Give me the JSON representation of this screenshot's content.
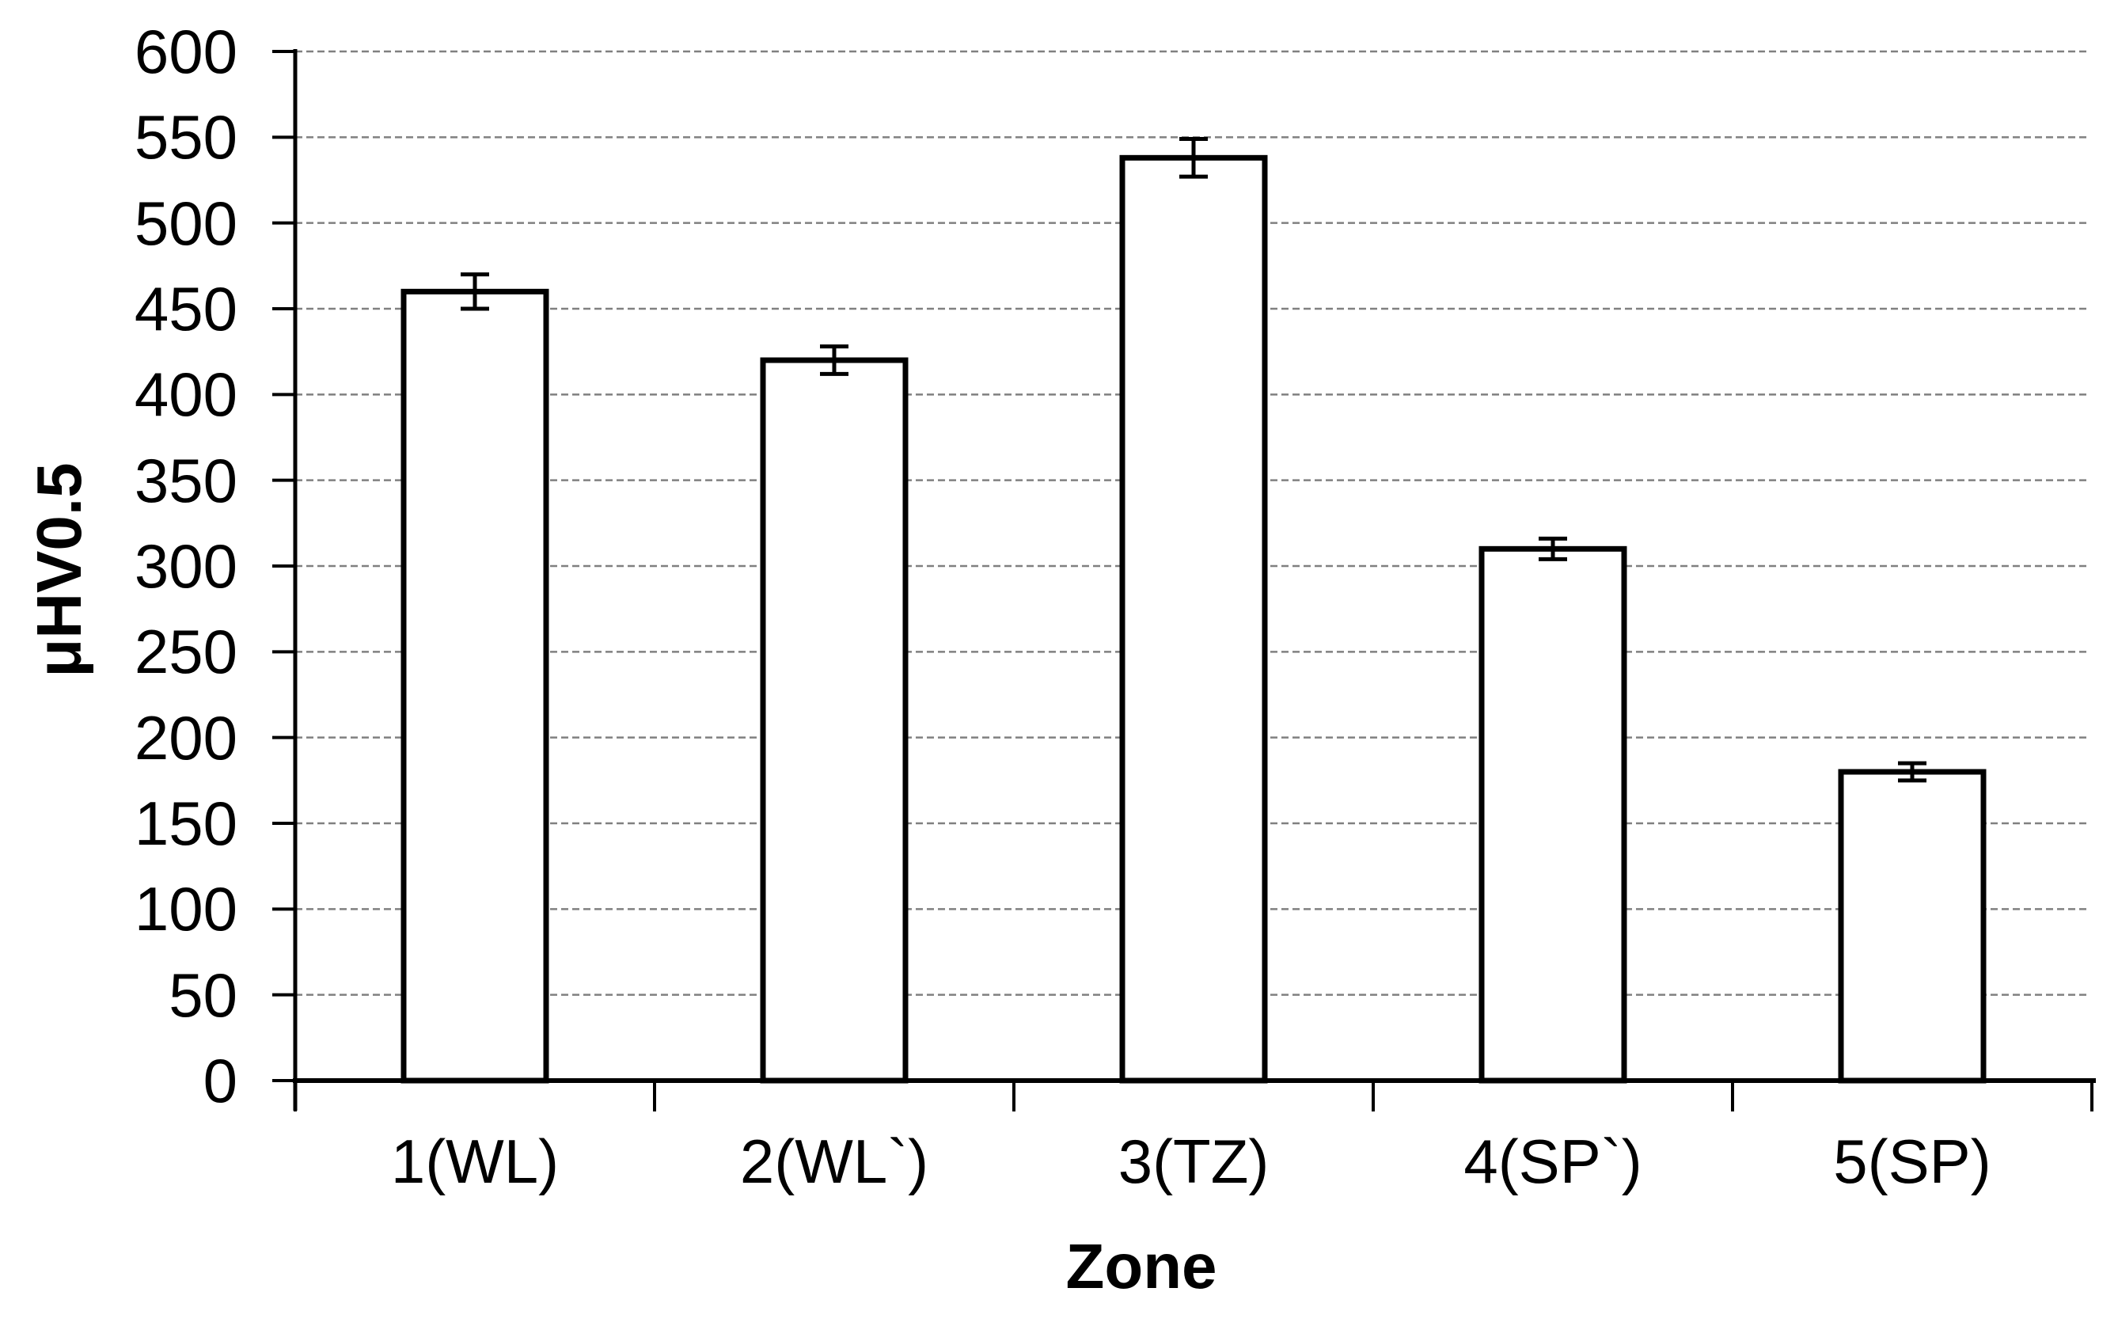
{
  "figure": {
    "background": "#ffffff"
  },
  "chart_data": {
    "type": "bar",
    "title": "",
    "xlabel": "Zone",
    "ylabel": "μHV0.5",
    "categories": [
      "1(WL)",
      "2(WL`)",
      "3(TZ)",
      "4(SP`)",
      "5(SP)"
    ],
    "values": [
      460,
      420,
      538,
      310,
      180
    ],
    "error_bars": [
      10,
      8,
      11,
      6,
      5
    ],
    "ylim": [
      0,
      600
    ],
    "ytick_step": 50,
    "yticks": [
      0,
      50,
      100,
      150,
      200,
      250,
      300,
      350,
      400,
      450,
      500,
      550,
      600
    ],
    "grid": true,
    "gridline_style": "fine-dashed",
    "legend": false,
    "styles": {
      "bar_fill": "#ffffff",
      "bar_stroke": "#000000",
      "gridline_color": "#808080",
      "axis_color": "#000000",
      "text_color": "#000000"
    }
  }
}
